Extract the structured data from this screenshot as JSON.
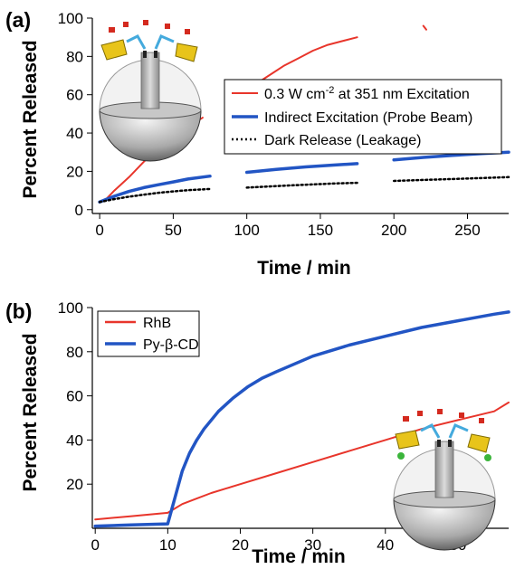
{
  "colors": {
    "red": "#e8352b",
    "blue": "#2255c4",
    "dark": "#000000"
  },
  "chart_data": [
    {
      "panel": "(a)",
      "type": "line",
      "xlabel": "Time / min",
      "ylabel": "Percent Released",
      "xlim": [
        -5,
        278
      ],
      "ylim": [
        -2,
        100
      ],
      "xticks": [
        0,
        50,
        100,
        150,
        200,
        250
      ],
      "yticks": [
        0,
        20,
        40,
        60,
        80,
        100
      ],
      "legend_position": "center-right",
      "grid": false,
      "series": [
        {
          "name": "0.3 W cm⁻² at 351 nm Excitation",
          "name_parts": [
            "0.3 W cm",
            "-2",
            " at 351 nm Excitation"
          ],
          "color": "red",
          "style": "solid",
          "segments": [
            [
              [
                0,
                4
              ],
              [
                5,
                6
              ],
              [
                10,
                10
              ],
              [
                20,
                17
              ],
              [
                30,
                25
              ],
              [
                40,
                32
              ],
              [
                50,
                38
              ],
              [
                60,
                43
              ],
              [
                70,
                48
              ]
            ],
            [
              [
                100,
                58
              ],
              [
                105,
                65
              ],
              [
                115,
                70
              ],
              [
                125,
                75
              ],
              [
                135,
                79
              ],
              [
                145,
                83
              ],
              [
                155,
                86
              ],
              [
                165,
                88
              ],
              [
                175,
                90
              ]
            ],
            [
              [
                220,
                96
              ],
              [
                222,
                94
              ]
            ]
          ]
        },
        {
          "name": "Indirect Excitation (Probe Beam)",
          "color": "blue",
          "style": "solid-thick",
          "segments": [
            [
              [
                0,
                4
              ],
              [
                10,
                7
              ],
              [
                20,
                9.5
              ],
              [
                30,
                11.5
              ],
              [
                40,
                13
              ],
              [
                50,
                14.5
              ],
              [
                60,
                16
              ],
              [
                75,
                17.5
              ]
            ],
            [
              [
                100,
                19.5
              ],
              [
                120,
                21
              ],
              [
                140,
                22.3
              ],
              [
                160,
                23.3
              ],
              [
                175,
                24
              ]
            ],
            [
              [
                200,
                26
              ],
              [
                220,
                27.3
              ],
              [
                240,
                28.3
              ],
              [
                260,
                29.3
              ],
              [
                278,
                30
              ]
            ]
          ]
        },
        {
          "name": "Dark Release (Leakage)",
          "color": "dark",
          "style": "dotted",
          "segments": [
            [
              [
                0,
                4
              ],
              [
                10,
                5.5
              ],
              [
                20,
                6.8
              ],
              [
                30,
                7.8
              ],
              [
                40,
                8.8
              ],
              [
                50,
                9.5
              ],
              [
                60,
                10.2
              ],
              [
                75,
                10.8
              ]
            ],
            [
              [
                100,
                11.5
              ],
              [
                120,
                12.3
              ],
              [
                140,
                13
              ],
              [
                160,
                13.7
              ],
              [
                175,
                14
              ]
            ],
            [
              [
                200,
                15
              ],
              [
                220,
                15.5
              ],
              [
                240,
                16
              ],
              [
                260,
                16.5
              ],
              [
                278,
                17
              ]
            ]
          ]
        }
      ]
    },
    {
      "panel": "(b)",
      "type": "line",
      "xlabel": "Time / min",
      "ylabel": "Percent Released",
      "xlim": [
        -0.4,
        57
      ],
      "ylim": [
        0,
        100
      ],
      "xticks": [
        0,
        10,
        20,
        30,
        40,
        50
      ],
      "yticks": [
        20,
        40,
        60,
        80,
        100
      ],
      "legend_position": "top-left",
      "grid": false,
      "series": [
        {
          "name": "RhB",
          "color": "red",
          "style": "solid",
          "segments": [
            [
              [
                0,
                4
              ],
              [
                5,
                5.5
              ],
              [
                10,
                7
              ],
              [
                11,
                9
              ],
              [
                12,
                11
              ],
              [
                14,
                13.5
              ],
              [
                16,
                16
              ],
              [
                18,
                18
              ],
              [
                20,
                20
              ],
              [
                25,
                25
              ],
              [
                30,
                30
              ],
              [
                35,
                35
              ],
              [
                40,
                40
              ],
              [
                45,
                45
              ],
              [
                50,
                49
              ],
              [
                55,
                53
              ],
              [
                57,
                57
              ]
            ]
          ]
        },
        {
          "name": "Py-β-CD",
          "color": "blue",
          "style": "solid-thick",
          "segments": [
            [
              [
                0,
                1
              ],
              [
                5,
                1.5
              ],
              [
                10,
                2
              ],
              [
                11,
                14
              ],
              [
                12,
                26
              ],
              [
                13,
                34
              ],
              [
                14,
                40
              ],
              [
                15,
                45
              ],
              [
                17,
                53
              ],
              [
                19,
                59
              ],
              [
                21,
                64
              ],
              [
                23,
                68
              ],
              [
                25,
                71
              ],
              [
                30,
                78
              ],
              [
                35,
                83
              ],
              [
                40,
                87
              ],
              [
                45,
                91
              ],
              [
                50,
                94
              ],
              [
                55,
                97
              ],
              [
                57,
                98
              ]
            ]
          ]
        }
      ]
    }
  ]
}
